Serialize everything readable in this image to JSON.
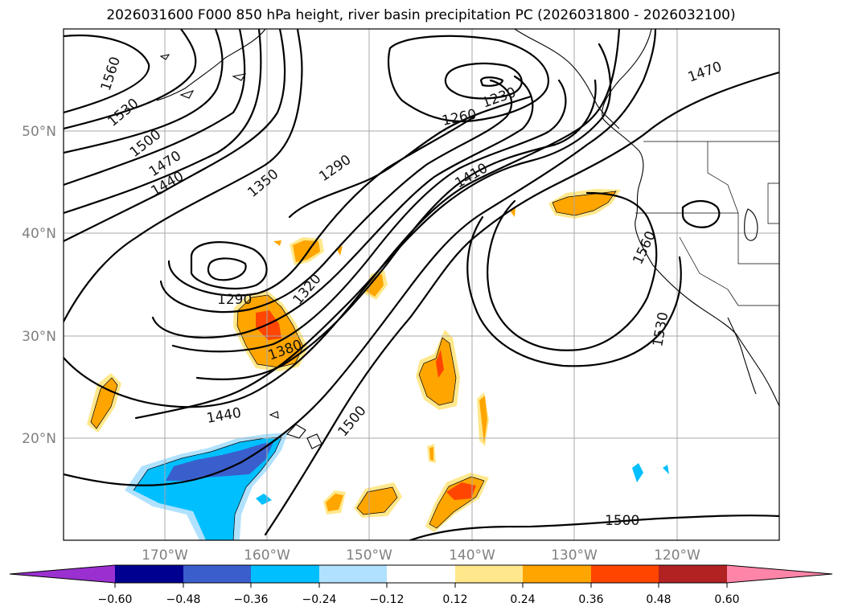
{
  "title": "2026031600 F000 850 hPa height, river basin precipitation PC (2026031800 - 2026032100)",
  "lat_labels": [
    "50°N",
    "40°N",
    "30°N",
    "20°N"
  ],
  "lon_labels": [
    "170°W",
    "160°W",
    "150°W",
    "140°W",
    "130°W",
    "120°W"
  ],
  "contour_labels": [
    "1560",
    "1530",
    "1500",
    "1470",
    "1440",
    "1350",
    "1290",
    "1260",
    "1230",
    "1410",
    "1470",
    "1560",
    "1530",
    "1290",
    "1320",
    "1380",
    "1440",
    "1500",
    "1500"
  ],
  "colorbar": {
    "ticks": [
      "−0.60",
      "−0.48",
      "−0.36",
      "−0.24",
      "−0.12",
      "0.12",
      "0.24",
      "0.36",
      "0.48",
      "0.60"
    ],
    "colors": [
      "#9b30d0",
      "#000090",
      "#3a5fcd",
      "#00bfff",
      "#b0e2ff",
      "#ffffff",
      "#ffe88c",
      "#ffa500",
      "#ff4500",
      "#b22222",
      "#ff85a8"
    ]
  }
}
